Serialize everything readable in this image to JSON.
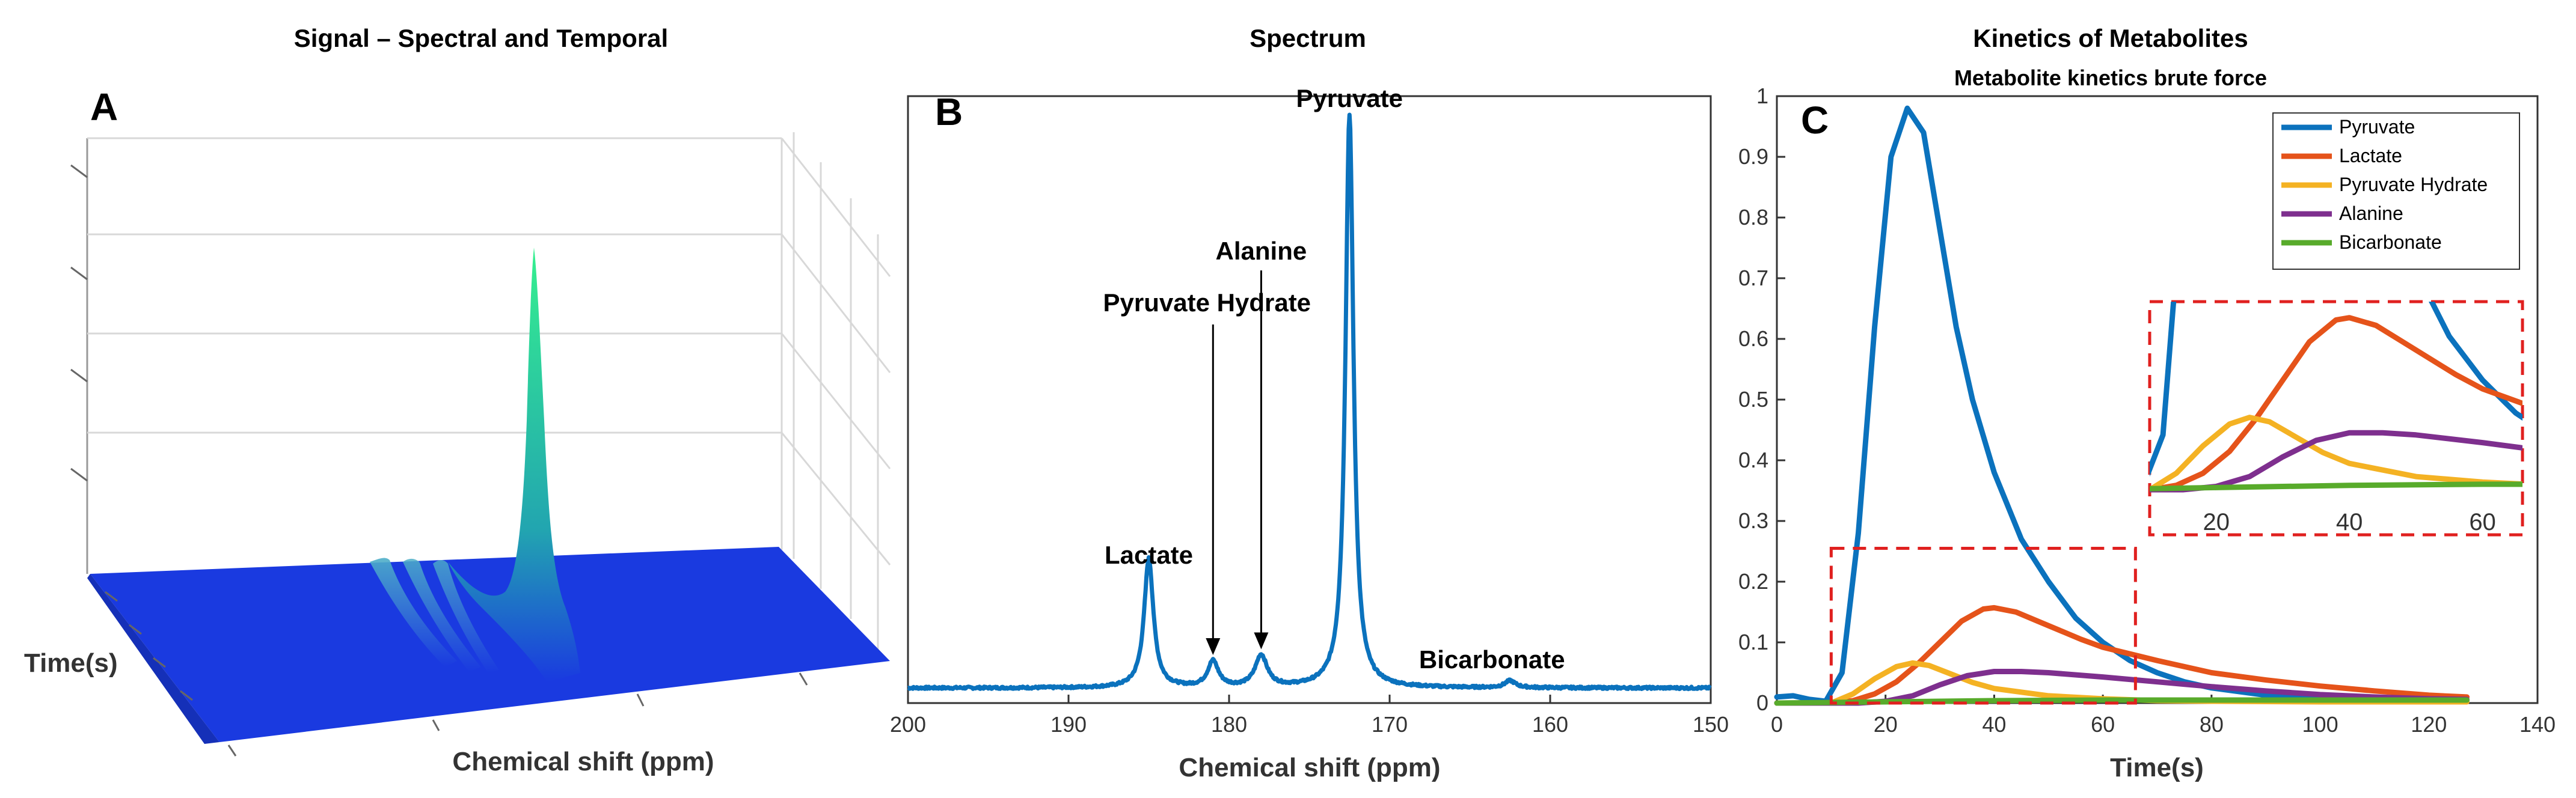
{
  "chart_data": [
    {
      "panel": "A",
      "type": "surface",
      "title": "Signal – Spectral and Temporal",
      "xlabel": "Chemical shift (ppm)",
      "ylabel": "Time(s)",
      "colormap": [
        "#1428e6",
        "#2bd08a",
        "#35f08f"
      ],
      "surface_color": "#1a3ae0",
      "peak_color": "#2be889"
    },
    {
      "panel": "B",
      "type": "line",
      "title": "Spectrum",
      "xlabel": "Chemical shift (ppm)",
      "xlim": [
        200,
        150
      ],
      "x_reversed": true,
      "xticks": [
        200,
        190,
        180,
        170,
        160,
        150
      ],
      "line_color": "#0b72bd",
      "peaks": [
        {
          "name": "Lactate",
          "ppm": 185.0,
          "height": 0.225
        },
        {
          "name": "Pyruvate Hydrate",
          "ppm": 181.0,
          "height": 0.045
        },
        {
          "name": "Alanine",
          "ppm": 178.0,
          "height": 0.055
        },
        {
          "name": "Pyruvate",
          "ppm": 172.5,
          "height": 1.0
        },
        {
          "name": "Bicarbonate",
          "ppm": 162.5,
          "height": 0.012
        }
      ],
      "annotations": [
        "Pyruvate Hydrate",
        "Alanine"
      ]
    },
    {
      "panel": "C",
      "type": "line",
      "title": "Kinetics of Metabolites",
      "subtitle": "Metabolite kinetics brute force",
      "xlabel": "Time(s)",
      "xlim": [
        0,
        140
      ],
      "ylim": [
        0,
        1
      ],
      "xticks": [
        0,
        20,
        40,
        60,
        80,
        100,
        120,
        140
      ],
      "yticks": [
        "0",
        "0.1",
        "0.2",
        "0.3",
        "0.4",
        "0.5",
        "0.6",
        "0.7",
        "0.8",
        "0.9",
        "1"
      ],
      "legend_position": "top-right",
      "series": [
        {
          "name": "Pyruvate",
          "color": "#0b72bd",
          "x": [
            0,
            3,
            6,
            9,
            12,
            15,
            18,
            21,
            24,
            27,
            30,
            33,
            36,
            40,
            45,
            50,
            55,
            60,
            65,
            70,
            75,
            80,
            90,
            100,
            110,
            120,
            127
          ],
          "y": [
            0.01,
            0.012,
            0.006,
            0.003,
            0.05,
            0.28,
            0.62,
            0.9,
            0.98,
            0.94,
            0.78,
            0.62,
            0.5,
            0.38,
            0.27,
            0.2,
            0.14,
            0.1,
            0.07,
            0.05,
            0.035,
            0.025,
            0.013,
            0.008,
            0.005,
            0.004,
            0.003
          ]
        },
        {
          "name": "Lactate",
          "color": "#e5531a",
          "x": [
            0,
            10,
            14,
            18,
            22,
            26,
            30,
            34,
            38,
            40,
            44,
            48,
            52,
            56,
            60,
            70,
            80,
            90,
            100,
            110,
            120,
            127
          ],
          "y": [
            0,
            0,
            0.004,
            0.015,
            0.035,
            0.065,
            0.1,
            0.135,
            0.155,
            0.157,
            0.15,
            0.135,
            0.12,
            0.105,
            0.092,
            0.07,
            0.05,
            0.038,
            0.028,
            0.02,
            0.013,
            0.01
          ]
        },
        {
          "name": "Pyruvate Hydrate",
          "color": "#f4b223",
          "x": [
            0,
            10,
            14,
            18,
            22,
            25,
            28,
            32,
            36,
            40,
            50,
            60,
            70,
            80,
            100,
            127
          ],
          "y": [
            0,
            0,
            0.015,
            0.04,
            0.06,
            0.066,
            0.062,
            0.048,
            0.034,
            0.024,
            0.012,
            0.007,
            0.004,
            0.003,
            0.002,
            0.002
          ]
        },
        {
          "name": "Alanine",
          "color": "#7e2f8e",
          "x": [
            0,
            15,
            20,
            25,
            30,
            35,
            40,
            45,
            50,
            60,
            70,
            80,
            90,
            100,
            110,
            120,
            127
          ],
          "y": [
            0,
            0,
            0.003,
            0.012,
            0.03,
            0.045,
            0.052,
            0.052,
            0.05,
            0.043,
            0.035,
            0.027,
            0.02,
            0.014,
            0.01,
            0.007,
            0.006
          ]
        },
        {
          "name": "Bicarbonate",
          "color": "#58ab2b",
          "x": [
            0,
            20,
            40,
            60,
            80,
            100,
            127
          ],
          "y": [
            0,
            0.002,
            0.004,
            0.005,
            0.005,
            0.005,
            0.005
          ]
        }
      ],
      "zoom_box": {
        "xlim": [
          10,
          66
        ],
        "ylim": [
          0,
          0.255
        ],
        "color": "#e0201f"
      },
      "inset": {
        "xticks": [
          20,
          40,
          60
        ],
        "xlim": [
          10,
          66
        ],
        "ylim": [
          0,
          0.17
        ]
      }
    }
  ]
}
